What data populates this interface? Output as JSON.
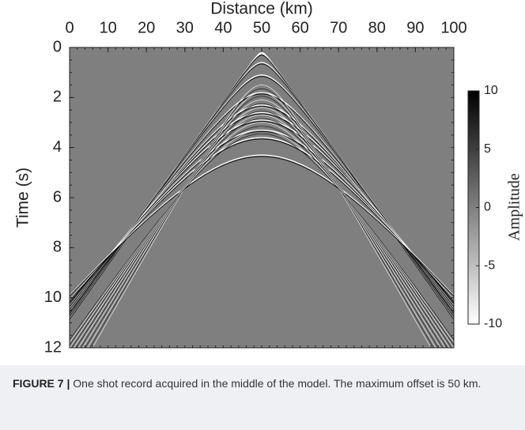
{
  "chart_data": {
    "type": "image",
    "xlabel": "Distance (km)",
    "ylabel": "Time (s)",
    "xlim": [
      0,
      100
    ],
    "xticks": [
      0,
      10,
      20,
      30,
      40,
      50,
      60,
      70,
      80,
      90,
      100
    ],
    "ylim": [
      12,
      0
    ],
    "yticks": [
      0,
      2,
      4,
      6,
      8,
      10,
      12
    ],
    "colorbar_label": "Amplitude",
    "clim": [
      -10,
      10
    ],
    "cticks": [
      10,
      5,
      0,
      -5,
      -10
    ]
  },
  "caption": {
    "label": "FIGURE 7 |",
    "text": "One shot record acquired in the middle of the model. The maximum offset is 50 km."
  }
}
